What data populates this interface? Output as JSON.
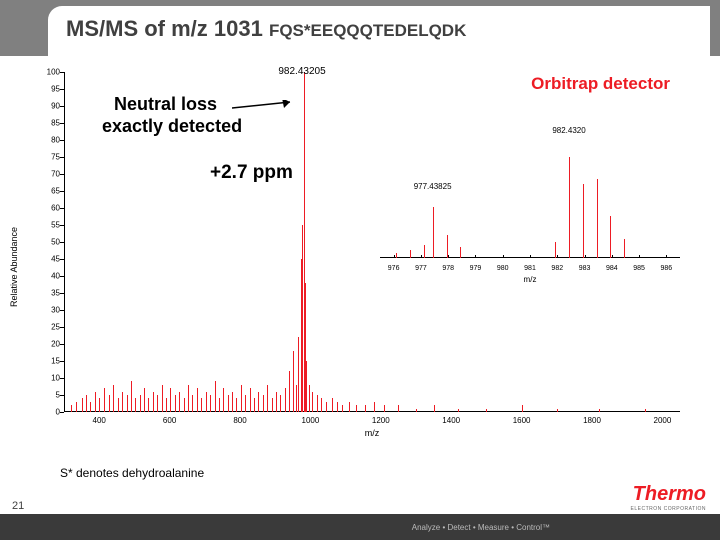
{
  "title_main": "MS/MS of m/z 1031 ",
  "title_seq": "FQS*EEQQQTEDELQDK",
  "detector_label": "Orbitrap detector",
  "main_peak_label": "982.43205",
  "neutral_loss_1": "Neutral loss",
  "neutral_loss_2": "exactly detected",
  "ppm_label": "+2.7 ppm",
  "footnote": "S* denotes dehydroalanine",
  "slide_number": "21",
  "logo_main": "Thermo",
  "logo_sub": "ELECTRON CORPORATION",
  "tagline": "Analyze • Detect • Measure • Control™",
  "chart": {
    "ylabel": "Relative Abundance",
    "xlabel": "m/z",
    "ylim": [
      0,
      100
    ],
    "xlim": [
      300,
      2050
    ],
    "yticks": [
      0,
      5,
      10,
      15,
      20,
      25,
      30,
      35,
      40,
      45,
      50,
      55,
      60,
      65,
      70,
      75,
      80,
      85,
      90,
      95,
      100
    ],
    "xticks": [
      400,
      600,
      800,
      1000,
      1200,
      1400,
      1600,
      1800,
      2000
    ],
    "peak_color": "#ed1c24",
    "axis_color": "#000000",
    "peaks": [
      {
        "x": 320,
        "h": 2
      },
      {
        "x": 335,
        "h": 3
      },
      {
        "x": 350,
        "h": 4
      },
      {
        "x": 362,
        "h": 5
      },
      {
        "x": 375,
        "h": 3
      },
      {
        "x": 388,
        "h": 6
      },
      {
        "x": 400,
        "h": 4
      },
      {
        "x": 415,
        "h": 7
      },
      {
        "x": 428,
        "h": 5
      },
      {
        "x": 440,
        "h": 8
      },
      {
        "x": 452,
        "h": 4
      },
      {
        "x": 465,
        "h": 6
      },
      {
        "x": 478,
        "h": 5
      },
      {
        "x": 490,
        "h": 9
      },
      {
        "x": 502,
        "h": 4
      },
      {
        "x": 515,
        "h": 5
      },
      {
        "x": 528,
        "h": 7
      },
      {
        "x": 540,
        "h": 4
      },
      {
        "x": 552,
        "h": 6
      },
      {
        "x": 565,
        "h": 5
      },
      {
        "x": 578,
        "h": 8
      },
      {
        "x": 590,
        "h": 4
      },
      {
        "x": 602,
        "h": 7
      },
      {
        "x": 615,
        "h": 5
      },
      {
        "x": 628,
        "h": 6
      },
      {
        "x": 640,
        "h": 4
      },
      {
        "x": 652,
        "h": 8
      },
      {
        "x": 665,
        "h": 5
      },
      {
        "x": 678,
        "h": 7
      },
      {
        "x": 690,
        "h": 4
      },
      {
        "x": 702,
        "h": 6
      },
      {
        "x": 715,
        "h": 5
      },
      {
        "x": 728,
        "h": 9
      },
      {
        "x": 740,
        "h": 4
      },
      {
        "x": 752,
        "h": 7
      },
      {
        "x": 765,
        "h": 5
      },
      {
        "x": 778,
        "h": 6
      },
      {
        "x": 790,
        "h": 4
      },
      {
        "x": 802,
        "h": 8
      },
      {
        "x": 815,
        "h": 5
      },
      {
        "x": 828,
        "h": 7
      },
      {
        "x": 840,
        "h": 4
      },
      {
        "x": 852,
        "h": 6
      },
      {
        "x": 865,
        "h": 5
      },
      {
        "x": 878,
        "h": 8
      },
      {
        "x": 890,
        "h": 4
      },
      {
        "x": 902,
        "h": 6
      },
      {
        "x": 915,
        "h": 5
      },
      {
        "x": 928,
        "h": 7
      },
      {
        "x": 940,
        "h": 12
      },
      {
        "x": 950,
        "h": 18
      },
      {
        "x": 958,
        "h": 8
      },
      {
        "x": 965,
        "h": 22
      },
      {
        "x": 972,
        "h": 45
      },
      {
        "x": 977,
        "h": 55
      },
      {
        "x": 982,
        "h": 100
      },
      {
        "x": 983,
        "h": 60
      },
      {
        "x": 984,
        "h": 38
      },
      {
        "x": 988,
        "h": 15
      },
      {
        "x": 995,
        "h": 8
      },
      {
        "x": 1005,
        "h": 6
      },
      {
        "x": 1018,
        "h": 5
      },
      {
        "x": 1030,
        "h": 4
      },
      {
        "x": 1045,
        "h": 3
      },
      {
        "x": 1060,
        "h": 4
      },
      {
        "x": 1075,
        "h": 3
      },
      {
        "x": 1090,
        "h": 2
      },
      {
        "x": 1110,
        "h": 3
      },
      {
        "x": 1130,
        "h": 2
      },
      {
        "x": 1155,
        "h": 2
      },
      {
        "x": 1180,
        "h": 3
      },
      {
        "x": 1210,
        "h": 2
      },
      {
        "x": 1250,
        "h": 2
      },
      {
        "x": 1300,
        "h": 1
      },
      {
        "x": 1350,
        "h": 2
      },
      {
        "x": 1420,
        "h": 1
      },
      {
        "x": 1500,
        "h": 1
      },
      {
        "x": 1600,
        "h": 2
      },
      {
        "x": 1700,
        "h": 1
      },
      {
        "x": 1820,
        "h": 1
      },
      {
        "x": 1950,
        "h": 1
      }
    ]
  },
  "inset": {
    "xlim": [
      975.5,
      986.5
    ],
    "xticks": [
      976,
      977,
      978,
      979,
      980,
      981,
      982,
      983,
      984,
      985,
      986
    ],
    "xlabel": "m/z",
    "peaks": [
      {
        "x": 976.1,
        "h": 5
      },
      {
        "x": 976.6,
        "h": 8
      },
      {
        "x": 977.1,
        "h": 12
      },
      {
        "x": 977.43,
        "h": 48
      },
      {
        "x": 977.95,
        "h": 22
      },
      {
        "x": 978.44,
        "h": 10
      },
      {
        "x": 981.93,
        "h": 15
      },
      {
        "x": 982.43,
        "h": 95
      },
      {
        "x": 982.94,
        "h": 70
      },
      {
        "x": 983.44,
        "h": 75
      },
      {
        "x": 983.94,
        "h": 40
      },
      {
        "x": 984.44,
        "h": 18
      }
    ],
    "labels": [
      {
        "x": 977.43,
        "text": "977.43825"
      },
      {
        "x": 982.43,
        "text": "982.4320"
      }
    ]
  }
}
